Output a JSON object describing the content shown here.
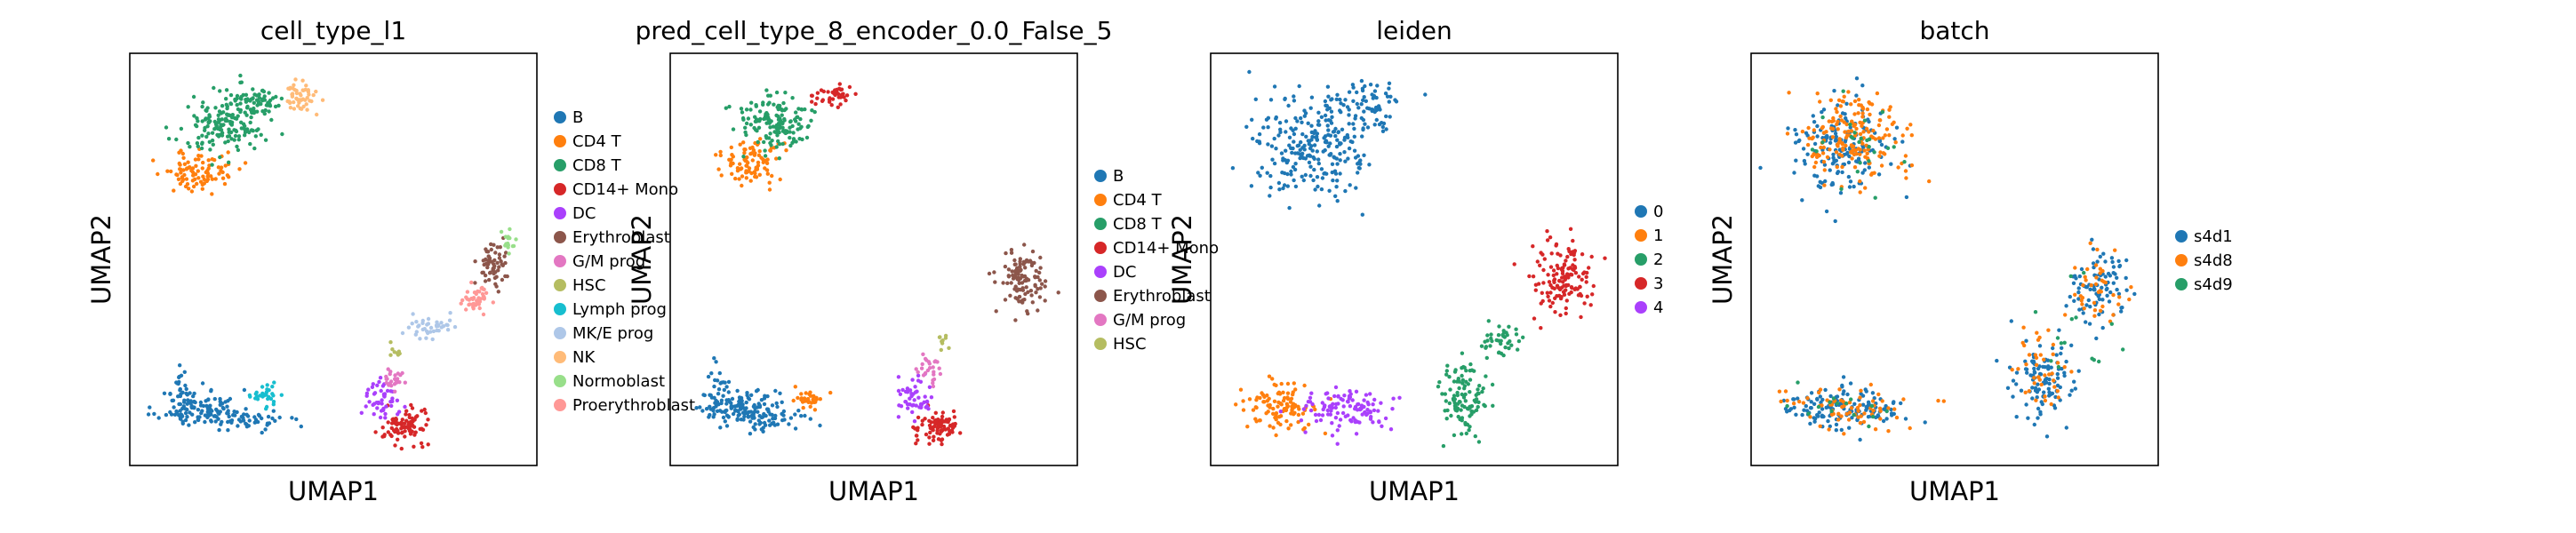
{
  "panels": [
    {
      "title": "cell_type_l1",
      "xlabel": "UMAP1",
      "ylabel": "UMAP2",
      "legend": [
        {
          "label": "B",
          "color": "#1f77b4"
        },
        {
          "label": "CD4 T",
          "color": "#ff7f0e"
        },
        {
          "label": "CD8 T",
          "color": "#279e68"
        },
        {
          "label": "CD14+ Mono",
          "color": "#d62728"
        },
        {
          "label": "DC",
          "color": "#aa40fc"
        },
        {
          "label": "Erythroblast",
          "color": "#8c564b"
        },
        {
          "label": "G/M prog",
          "color": "#e377c2"
        },
        {
          "label": "HSC",
          "color": "#b5bd61"
        },
        {
          "label": "Lymph prog",
          "color": "#17becf"
        },
        {
          "label": "MK/E prog",
          "color": "#aec7e8"
        },
        {
          "label": "NK",
          "color": "#ffbb78"
        },
        {
          "label": "Normoblast",
          "color": "#98df8a"
        },
        {
          "label": "Proerythroblast",
          "color": "#ff9896"
        }
      ]
    },
    {
      "title": "pred_cell_type_8_encoder_0.0_False_5",
      "xlabel": "UMAP1",
      "ylabel": "UMAP2",
      "legend": [
        {
          "label": "B",
          "color": "#1f77b4"
        },
        {
          "label": "CD4 T",
          "color": "#ff7f0e"
        },
        {
          "label": "CD8 T",
          "color": "#279e68"
        },
        {
          "label": "CD14+ Mono",
          "color": "#d62728"
        },
        {
          "label": "DC",
          "color": "#aa40fc"
        },
        {
          "label": "Erythroblast",
          "color": "#8c564b"
        },
        {
          "label": "G/M prog",
          "color": "#e377c2"
        },
        {
          "label": "HSC",
          "color": "#b5bd61"
        }
      ]
    },
    {
      "title": "leiden",
      "xlabel": "UMAP1",
      "ylabel": "UMAP2",
      "legend": [
        {
          "label": "0",
          "color": "#1f77b4"
        },
        {
          "label": "1",
          "color": "#ff7f0e"
        },
        {
          "label": "2",
          "color": "#279e68"
        },
        {
          "label": "3",
          "color": "#d62728"
        },
        {
          "label": "4",
          "color": "#aa40fc"
        }
      ]
    },
    {
      "title": "batch",
      "xlabel": "UMAP1",
      "ylabel": "UMAP2",
      "legend": [
        {
          "label": "s4d1",
          "color": "#1f77b4"
        },
        {
          "label": "s4d8",
          "color": "#ff7f0e"
        },
        {
          "label": "s4d9",
          "color": "#279e68"
        }
      ]
    }
  ],
  "chart_data": [
    {
      "type": "scatter",
      "title": "cell_type_l1",
      "xlabel": "UMAP1",
      "ylabel": "UMAP2",
      "xlim": [
        0,
        1
      ],
      "ylim": [
        0,
        1
      ],
      "grid": false,
      "legend_position": "right",
      "series": [
        {
          "name": "B",
          "color": "#1f77b4",
          "clusters": [
            {
              "cx": 0.16,
              "cy": 0.13,
              "rx": 0.1,
              "ry": 0.045,
              "n": 110
            },
            {
              "cx": 0.27,
              "cy": 0.1,
              "rx": 0.12,
              "ry": 0.03,
              "n": 60
            },
            {
              "cx": 0.12,
              "cy": 0.19,
              "rx": 0.03,
              "ry": 0.05,
              "n": 20
            }
          ]
        },
        {
          "name": "CD4 T",
          "color": "#ff7f0e",
          "clusters": [
            {
              "cx": 0.16,
              "cy": 0.72,
              "rx": 0.09,
              "ry": 0.05,
              "n": 90
            }
          ]
        },
        {
          "name": "CD8 T",
          "color": "#279e68",
          "clusters": [
            {
              "cx": 0.22,
              "cy": 0.83,
              "rx": 0.1,
              "ry": 0.07,
              "n": 150
            },
            {
              "cx": 0.3,
              "cy": 0.89,
              "rx": 0.07,
              "ry": 0.04,
              "n": 70
            }
          ]
        },
        {
          "name": "CD14+ Mono",
          "color": "#d62728",
          "clusters": [
            {
              "cx": 0.68,
              "cy": 0.08,
              "rx": 0.055,
              "ry": 0.045,
              "n": 90
            }
          ]
        },
        {
          "name": "DC",
          "color": "#aa40fc",
          "clusters": [
            {
              "cx": 0.62,
              "cy": 0.15,
              "rx": 0.04,
              "ry": 0.05,
              "n": 50
            }
          ]
        },
        {
          "name": "Erythroblast",
          "color": "#8c564b",
          "clusters": [
            {
              "cx": 0.9,
              "cy": 0.48,
              "rx": 0.04,
              "ry": 0.06,
              "n": 60
            }
          ]
        },
        {
          "name": "G/M prog",
          "color": "#e377c2",
          "clusters": [
            {
              "cx": 0.65,
              "cy": 0.2,
              "rx": 0.025,
              "ry": 0.04,
              "n": 25
            }
          ]
        },
        {
          "name": "HSC",
          "color": "#b5bd61",
          "clusters": [
            {
              "cx": 0.66,
              "cy": 0.27,
              "rx": 0.015,
              "ry": 0.015,
              "n": 8
            }
          ]
        },
        {
          "name": "Lymph prog",
          "color": "#17becf",
          "clusters": [
            {
              "cx": 0.33,
              "cy": 0.16,
              "rx": 0.04,
              "ry": 0.025,
              "n": 30
            }
          ]
        },
        {
          "name": "MK/E prog",
          "color": "#aec7e8",
          "clusters": [
            {
              "cx": 0.75,
              "cy": 0.33,
              "rx": 0.06,
              "ry": 0.03,
              "n": 40
            }
          ]
        },
        {
          "name": "NK",
          "color": "#ffbb78",
          "clusters": [
            {
              "cx": 0.42,
              "cy": 0.9,
              "rx": 0.04,
              "ry": 0.04,
              "n": 50
            }
          ]
        },
        {
          "name": "Normoblast",
          "color": "#98df8a",
          "clusters": [
            {
              "cx": 0.94,
              "cy": 0.55,
              "rx": 0.02,
              "ry": 0.03,
              "n": 15
            }
          ]
        },
        {
          "name": "Proerythroblast",
          "color": "#ff9896",
          "clusters": [
            {
              "cx": 0.86,
              "cy": 0.4,
              "rx": 0.04,
              "ry": 0.035,
              "n": 45
            }
          ]
        }
      ]
    },
    {
      "type": "scatter",
      "title": "pred_cell_type_8_encoder_0.0_False_5",
      "xlabel": "UMAP1",
      "ylabel": "UMAP2",
      "xlim": [
        0,
        1
      ],
      "ylim": [
        0,
        1
      ],
      "grid": false,
      "legend_position": "right",
      "series": [
        {
          "name": "B",
          "color": "#1f77b4",
          "clusters": [
            {
              "cx": 0.16,
              "cy": 0.13,
              "rx": 0.1,
              "ry": 0.045,
              "n": 120
            },
            {
              "cx": 0.24,
              "cy": 0.1,
              "rx": 0.1,
              "ry": 0.03,
              "n": 50
            },
            {
              "cx": 0.11,
              "cy": 0.19,
              "rx": 0.03,
              "ry": 0.05,
              "n": 20
            }
          ]
        },
        {
          "name": "CD4 T",
          "color": "#ff7f0e",
          "clusters": [
            {
              "cx": 0.19,
              "cy": 0.74,
              "rx": 0.09,
              "ry": 0.05,
              "n": 90
            },
            {
              "cx": 0.34,
              "cy": 0.15,
              "rx": 0.04,
              "ry": 0.025,
              "n": 30
            }
          ]
        },
        {
          "name": "CD8 T",
          "color": "#279e68",
          "clusters": [
            {
              "cx": 0.25,
              "cy": 0.84,
              "rx": 0.1,
              "ry": 0.07,
              "n": 150
            }
          ]
        },
        {
          "name": "CD14+ Mono",
          "color": "#d62728",
          "clusters": [
            {
              "cx": 0.66,
              "cy": 0.08,
              "rx": 0.055,
              "ry": 0.045,
              "n": 90
            },
            {
              "cx": 0.4,
              "cy": 0.91,
              "rx": 0.05,
              "ry": 0.03,
              "n": 40
            }
          ]
        },
        {
          "name": "DC",
          "color": "#aa40fc",
          "clusters": [
            {
              "cx": 0.6,
              "cy": 0.16,
              "rx": 0.04,
              "ry": 0.05,
              "n": 50
            }
          ]
        },
        {
          "name": "Erythroblast",
          "color": "#8c564b",
          "clusters": [
            {
              "cx": 0.88,
              "cy": 0.45,
              "rx": 0.06,
              "ry": 0.08,
              "n": 110
            }
          ]
        },
        {
          "name": "G/M prog",
          "color": "#e377c2",
          "clusters": [
            {
              "cx": 0.64,
              "cy": 0.22,
              "rx": 0.03,
              "ry": 0.05,
              "n": 25
            }
          ]
        },
        {
          "name": "HSC",
          "color": "#b5bd61",
          "clusters": [
            {
              "cx": 0.68,
              "cy": 0.3,
              "rx": 0.02,
              "ry": 0.02,
              "n": 10
            }
          ]
        }
      ]
    },
    {
      "type": "scatter",
      "title": "leiden",
      "xlabel": "UMAP1",
      "ylabel": "UMAP2",
      "xlim": [
        0,
        1
      ],
      "ylim": [
        0,
        1
      ],
      "grid": false,
      "legend_position": "right",
      "series": [
        {
          "name": "0",
          "color": "#1f77b4",
          "clusters": [
            {
              "cx": 0.25,
              "cy": 0.78,
              "rx": 0.15,
              "ry": 0.13,
              "n": 260
            },
            {
              "cx": 0.38,
              "cy": 0.89,
              "rx": 0.09,
              "ry": 0.05,
              "n": 60
            }
          ]
        },
        {
          "name": "1",
          "color": "#ff7f0e",
          "clusters": [
            {
              "cx": 0.16,
              "cy": 0.13,
              "rx": 0.09,
              "ry": 0.06,
              "n": 110
            }
          ]
        },
        {
          "name": "2",
          "color": "#279e68",
          "clusters": [
            {
              "cx": 0.62,
              "cy": 0.15,
              "rx": 0.06,
              "ry": 0.09,
              "n": 110
            },
            {
              "cx": 0.72,
              "cy": 0.3,
              "rx": 0.05,
              "ry": 0.04,
              "n": 40
            }
          ]
        },
        {
          "name": "3",
          "color": "#d62728",
          "clusters": [
            {
              "cx": 0.88,
              "cy": 0.45,
              "rx": 0.07,
              "ry": 0.09,
              "n": 140
            }
          ]
        },
        {
          "name": "4",
          "color": "#aa40fc",
          "clusters": [
            {
              "cx": 0.32,
              "cy": 0.13,
              "rx": 0.11,
              "ry": 0.05,
              "n": 110
            }
          ]
        }
      ]
    },
    {
      "type": "scatter",
      "title": "batch",
      "xlabel": "UMAP1",
      "ylabel": "UMAP2",
      "xlim": [
        0,
        1
      ],
      "ylim": [
        0,
        1
      ],
      "grid": false,
      "legend_position": "right",
      "series": [
        {
          "name": "s4d1",
          "color": "#1f77b4",
          "clusters": [
            {
              "cx": 0.22,
              "cy": 0.78,
              "rx": 0.13,
              "ry": 0.12,
              "n": 170
            },
            {
              "cx": 0.22,
              "cy": 0.13,
              "rx": 0.15,
              "ry": 0.05,
              "n": 150
            },
            {
              "cx": 0.72,
              "cy": 0.2,
              "rx": 0.07,
              "ry": 0.1,
              "n": 110
            },
            {
              "cx": 0.86,
              "cy": 0.43,
              "rx": 0.07,
              "ry": 0.1,
              "n": 90
            }
          ]
        },
        {
          "name": "s4d8",
          "color": "#ff7f0e",
          "clusters": [
            {
              "cx": 0.25,
              "cy": 0.8,
              "rx": 0.13,
              "ry": 0.12,
              "n": 180
            },
            {
              "cx": 0.23,
              "cy": 0.13,
              "rx": 0.15,
              "ry": 0.05,
              "n": 70
            },
            {
              "cx": 0.72,
              "cy": 0.22,
              "rx": 0.07,
              "ry": 0.1,
              "n": 40
            },
            {
              "cx": 0.86,
              "cy": 0.43,
              "rx": 0.07,
              "ry": 0.1,
              "n": 40
            }
          ]
        },
        {
          "name": "s4d9",
          "color": "#279e68",
          "clusters": [
            {
              "cx": 0.25,
              "cy": 0.79,
              "rx": 0.13,
              "ry": 0.12,
              "n": 25
            },
            {
              "cx": 0.23,
              "cy": 0.13,
              "rx": 0.15,
              "ry": 0.05,
              "n": 15
            },
            {
              "cx": 0.8,
              "cy": 0.32,
              "rx": 0.1,
              "ry": 0.12,
              "n": 15
            }
          ]
        }
      ]
    }
  ]
}
